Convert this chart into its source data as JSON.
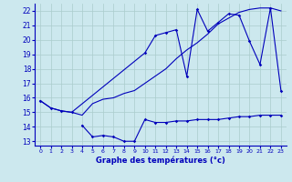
{
  "title": "Graphe des températures (°c)",
  "background_color": "#cce8ee",
  "grid_color": "#aacccc",
  "line_color": "#0000bb",
  "xlim": [
    -0.5,
    23.5
  ],
  "ylim": [
    12.7,
    22.5
  ],
  "yticks": [
    13,
    14,
    15,
    16,
    17,
    18,
    19,
    20,
    21,
    22
  ],
  "xticks": [
    0,
    1,
    2,
    3,
    4,
    5,
    6,
    7,
    8,
    9,
    10,
    11,
    12,
    13,
    14,
    15,
    16,
    17,
    18,
    19,
    20,
    21,
    22,
    23
  ],
  "line1_x": [
    0,
    1,
    2,
    3,
    4,
    5,
    6,
    7,
    8,
    9,
    10,
    11,
    12,
    13,
    14,
    15,
    16,
    17,
    18,
    19,
    20,
    21,
    22,
    23
  ],
  "line1_y": [
    15.8,
    15.3,
    15.1,
    15.0,
    14.8,
    15.6,
    15.9,
    16.0,
    16.3,
    16.5,
    17.0,
    17.5,
    18.0,
    18.7,
    19.3,
    19.8,
    20.4,
    21.1,
    21.5,
    21.9,
    22.1,
    22.2,
    22.2,
    22.0
  ],
  "line2_x": [
    0,
    1,
    2,
    3,
    10,
    11,
    12,
    13,
    14,
    15,
    16,
    17,
    18,
    19,
    20,
    21,
    22,
    23
  ],
  "line2_y": [
    15.8,
    15.3,
    15.1,
    15.0,
    19.1,
    20.3,
    20.5,
    20.7,
    17.5,
    22.1,
    20.6,
    21.2,
    21.8,
    21.7,
    19.9,
    18.3,
    22.2,
    16.5
  ],
  "line3_x": [
    4,
    5,
    6,
    7,
    8,
    9,
    10,
    11,
    12,
    13,
    14,
    15,
    16,
    17,
    18,
    19,
    20,
    21,
    22,
    23
  ],
  "line3_y": [
    14.1,
    13.3,
    13.4,
    13.3,
    13.0,
    13.0,
    14.5,
    14.3,
    14.3,
    14.4,
    14.4,
    14.5,
    14.5,
    14.5,
    14.6,
    14.7,
    14.7,
    14.8,
    14.8,
    14.8
  ]
}
